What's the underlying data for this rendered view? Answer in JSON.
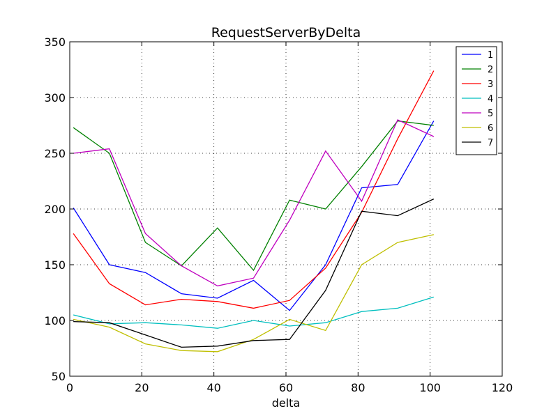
{
  "chart_data": {
    "type": "line",
    "title": "RequestServerByDelta",
    "xlabel": "delta",
    "ylabel": "",
    "xlim": [
      0,
      120
    ],
    "ylim": [
      50,
      350
    ],
    "xticks": [
      0,
      20,
      40,
      60,
      80,
      100,
      120
    ],
    "yticks": [
      50,
      100,
      150,
      200,
      250,
      300,
      350
    ],
    "grid": true,
    "legend_position": "top-right",
    "x": [
      1,
      11,
      21,
      31,
      41,
      51,
      61,
      71,
      81,
      91,
      101
    ],
    "series": [
      {
        "name": "1",
        "color": "#0000ff",
        "values": [
          201,
          150,
          143,
          124,
          120,
          136,
          109,
          150,
          219,
          222,
          279
        ]
      },
      {
        "name": "2",
        "color": "#008000",
        "values": [
          273,
          250,
          170,
          149,
          183,
          145,
          208,
          200,
          238,
          279,
          275
        ]
      },
      {
        "name": "3",
        "color": "#ff0000",
        "values": [
          178,
          133,
          114,
          119,
          117,
          111,
          118,
          147,
          197,
          263,
          324
        ]
      },
      {
        "name": "4",
        "color": "#00bfbf",
        "values": [
          105,
          97,
          98,
          96,
          93,
          100,
          95,
          98,
          108,
          111,
          121
        ]
      },
      {
        "name": "5",
        "color": "#bf00bf",
        "values": [
          250,
          254,
          178,
          149,
          131,
          138,
          190,
          252,
          207,
          280,
          265
        ]
      },
      {
        "name": "6",
        "color": "#bfbf00",
        "values": [
          101,
          94,
          79,
          73,
          72,
          83,
          101,
          91,
          150,
          170,
          177
        ]
      },
      {
        "name": "7",
        "color": "#000000",
        "values": [
          99,
          98,
          87,
          76,
          77,
          82,
          83,
          127,
          198,
          194,
          209
        ]
      }
    ]
  }
}
